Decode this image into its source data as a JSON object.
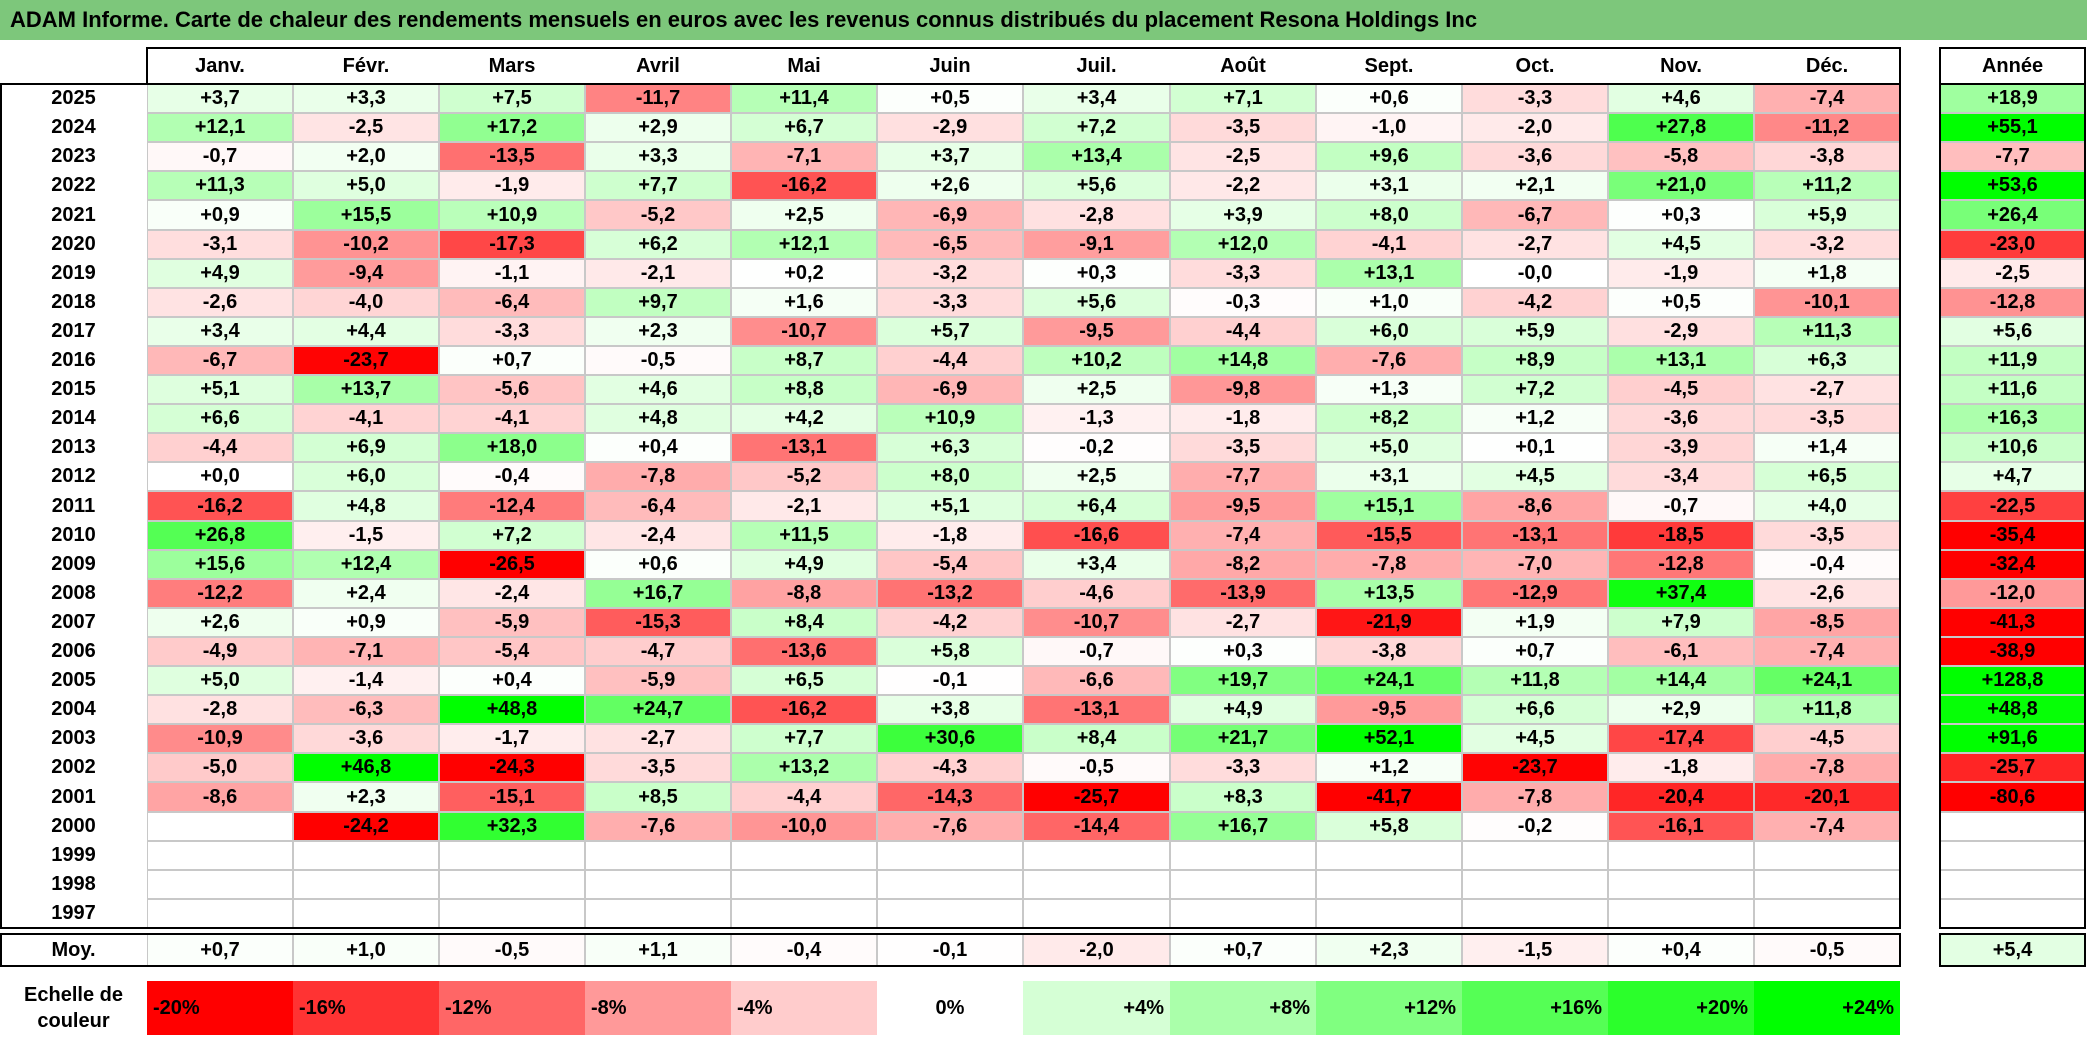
{
  "title": "ADAM Informe. Carte de chaleur des rendements mensuels en euros avec les revenus connus distribués du placement Resona Holdings Inc",
  "chart_data": {
    "type": "heatmap",
    "months": [
      "Janv.",
      "Févr.",
      "Mars",
      "Avril",
      "Mai",
      "Juin",
      "Juil.",
      "Août",
      "Sept.",
      "Oct.",
      "Nov.",
      "Déc."
    ],
    "year_column_label": "Année",
    "rows": [
      {
        "year": "2025",
        "values": [
          "+3,7",
          "+3,3",
          "+7,5",
          "-11,7",
          "+11,4",
          "+0,5",
          "+3,4",
          "+7,1",
          "+0,6",
          "-3,3",
          "+4,6",
          "-7,4"
        ],
        "annual": "+18,9"
      },
      {
        "year": "2024",
        "values": [
          "+12,1",
          "-2,5",
          "+17,2",
          "+2,9",
          "+6,7",
          "-2,9",
          "+7,2",
          "-3,5",
          "-1,0",
          "-2,0",
          "+27,8",
          "-11,2"
        ],
        "annual": "+55,1"
      },
      {
        "year": "2023",
        "values": [
          "-0,7",
          "+2,0",
          "-13,5",
          "+3,3",
          "-7,1",
          "+3,7",
          "+13,4",
          "-2,5",
          "+9,6",
          "-3,6",
          "-5,8",
          "-3,8"
        ],
        "annual": "-7,7"
      },
      {
        "year": "2022",
        "values": [
          "+11,3",
          "+5,0",
          "-1,9",
          "+7,7",
          "-16,2",
          "+2,6",
          "+5,6",
          "-2,2",
          "+3,1",
          "+2,1",
          "+21,0",
          "+11,2"
        ],
        "annual": "+53,6"
      },
      {
        "year": "2021",
        "values": [
          "+0,9",
          "+15,5",
          "+10,9",
          "-5,2",
          "+2,5",
          "-6,9",
          "-2,8",
          "+3,9",
          "+8,0",
          "-6,7",
          "+0,3",
          "+5,9"
        ],
        "annual": "+26,4"
      },
      {
        "year": "2020",
        "values": [
          "-3,1",
          "-10,2",
          "-17,3",
          "+6,2",
          "+12,1",
          "-6,5",
          "-9,1",
          "+12,0",
          "-4,1",
          "-2,7",
          "+4,5",
          "-3,2"
        ],
        "annual": "-23,0"
      },
      {
        "year": "2019",
        "values": [
          "+4,9",
          "-9,4",
          "-1,1",
          "-2,1",
          "+0,2",
          "-3,2",
          "+0,3",
          "-3,3",
          "+13,1",
          "-0,0",
          "-1,9",
          "+1,8"
        ],
        "annual": "-2,5"
      },
      {
        "year": "2018",
        "values": [
          "-2,6",
          "-4,0",
          "-6,4",
          "+9,7",
          "+1,6",
          "-3,3",
          "+5,6",
          "-0,3",
          "+1,0",
          "-4,2",
          "+0,5",
          "-10,1"
        ],
        "annual": "-12,8"
      },
      {
        "year": "2017",
        "values": [
          "+3,4",
          "+4,4",
          "-3,3",
          "+2,3",
          "-10,7",
          "+5,7",
          "-9,5",
          "-4,4",
          "+6,0",
          "+5,9",
          "-2,9",
          "+11,3"
        ],
        "annual": "+5,6"
      },
      {
        "year": "2016",
        "values": [
          "-6,7",
          "-23,7",
          "+0,7",
          "-0,5",
          "+8,7",
          "-4,4",
          "+10,2",
          "+14,8",
          "-7,6",
          "+8,9",
          "+13,1",
          "+6,3"
        ],
        "annual": "+11,9"
      },
      {
        "year": "2015",
        "values": [
          "+5,1",
          "+13,7",
          "-5,6",
          "+4,6",
          "+8,8",
          "-6,9",
          "+2,5",
          "-9,8",
          "+1,3",
          "+7,2",
          "-4,5",
          "-2,7"
        ],
        "annual": "+11,6"
      },
      {
        "year": "2014",
        "values": [
          "+6,6",
          "-4,1",
          "-4,1",
          "+4,8",
          "+4,2",
          "+10,9",
          "-1,3",
          "-1,8",
          "+8,2",
          "+1,2",
          "-3,6",
          "-3,5"
        ],
        "annual": "+16,3"
      },
      {
        "year": "2013",
        "values": [
          "-4,4",
          "+6,9",
          "+18,0",
          "+0,4",
          "-13,1",
          "+6,3",
          "-0,2",
          "-3,5",
          "+5,0",
          "+0,1",
          "-3,9",
          "+1,4"
        ],
        "annual": "+10,6"
      },
      {
        "year": "2012",
        "values": [
          "+0,0",
          "+6,0",
          "-0,4",
          "-7,8",
          "-5,2",
          "+8,0",
          "+2,5",
          "-7,7",
          "+3,1",
          "+4,5",
          "-3,4",
          "+6,5"
        ],
        "annual": "+4,7"
      },
      {
        "year": "2011",
        "values": [
          "-16,2",
          "+4,8",
          "-12,4",
          "-6,4",
          "-2,1",
          "+5,1",
          "+6,4",
          "-9,5",
          "+15,1",
          "-8,6",
          "-0,7",
          "+4,0"
        ],
        "annual": "-22,5"
      },
      {
        "year": "2010",
        "values": [
          "+26,8",
          "-1,5",
          "+7,2",
          "-2,4",
          "+11,5",
          "-1,8",
          "-16,6",
          "-7,4",
          "-15,5",
          "-13,1",
          "-18,5",
          "-3,5"
        ],
        "annual": "-35,4"
      },
      {
        "year": "2009",
        "values": [
          "+15,6",
          "+12,4",
          "-26,5",
          "+0,6",
          "+4,9",
          "-5,4",
          "+3,4",
          "-8,2",
          "-7,8",
          "-7,0",
          "-12,8",
          "-0,4"
        ],
        "annual": "-32,4"
      },
      {
        "year": "2008",
        "values": [
          "-12,2",
          "+2,4",
          "-2,4",
          "+16,7",
          "-8,8",
          "-13,2",
          "-4,6",
          "-13,9",
          "+13,5",
          "-12,9",
          "+37,4",
          "-2,6"
        ],
        "annual": "-12,0"
      },
      {
        "year": "2007",
        "values": [
          "+2,6",
          "+0,9",
          "-5,9",
          "-15,3",
          "+8,4",
          "-4,2",
          "-10,7",
          "-2,7",
          "-21,9",
          "+1,9",
          "+7,9",
          "-8,5"
        ],
        "annual": "-41,3"
      },
      {
        "year": "2006",
        "values": [
          "-4,9",
          "-7,1",
          "-5,4",
          "-4,7",
          "-13,6",
          "+5,8",
          "-0,7",
          "+0,3",
          "-3,8",
          "+0,7",
          "-6,1",
          "-7,4"
        ],
        "annual": "-38,9"
      },
      {
        "year": "2005",
        "values": [
          "+5,0",
          "-1,4",
          "+0,4",
          "-5,9",
          "+6,5",
          "-0,1",
          "-6,6",
          "+19,7",
          "+24,1",
          "+11,8",
          "+14,4",
          "+24,1"
        ],
        "annual": "+128,8"
      },
      {
        "year": "2004",
        "values": [
          "-2,8",
          "-6,3",
          "+48,8",
          "+24,7",
          "-16,2",
          "+3,8",
          "-13,1",
          "+4,9",
          "-9,5",
          "+6,6",
          "+2,9",
          "+11,8"
        ],
        "annual": "+48,8"
      },
      {
        "year": "2003",
        "values": [
          "-10,9",
          "-3,6",
          "-1,7",
          "-2,7",
          "+7,7",
          "+30,6",
          "+8,4",
          "+21,7",
          "+52,1",
          "+4,5",
          "-17,4",
          "-4,5"
        ],
        "annual": "+91,6"
      },
      {
        "year": "2002",
        "values": [
          "-5,0",
          "+46,8",
          "-24,3",
          "-3,5",
          "+13,2",
          "-4,3",
          "-0,5",
          "-3,3",
          "+1,2",
          "-23,7",
          "-1,8",
          "-7,8"
        ],
        "annual": "-25,7"
      },
      {
        "year": "2001",
        "values": [
          "-8,6",
          "+2,3",
          "-15,1",
          "+8,5",
          "-4,4",
          "-14,3",
          "-25,7",
          "+8,3",
          "-41,7",
          "-7,8",
          "-20,4",
          "-20,1"
        ],
        "annual": "-80,6"
      },
      {
        "year": "2000",
        "values": [
          "",
          "-24,2",
          "+32,3",
          "-7,6",
          "-10,0",
          "-7,6",
          "-14,4",
          "+16,7",
          "+5,8",
          "-0,2",
          "-16,1",
          "-7,4"
        ],
        "annual": ""
      },
      {
        "year": "1999",
        "values": [
          "",
          "",
          "",
          "",
          "",
          "",
          "",
          "",
          "",
          "",
          "",
          ""
        ],
        "annual": ""
      },
      {
        "year": "1998",
        "values": [
          "",
          "",
          "",
          "",
          "",
          "",
          "",
          "",
          "",
          "",
          "",
          ""
        ],
        "annual": ""
      },
      {
        "year": "1997",
        "values": [
          "",
          "",
          "",
          "",
          "",
          "",
          "",
          "",
          "",
          "",
          "",
          ""
        ],
        "annual": ""
      }
    ],
    "average": {
      "label": "Moy.",
      "values": [
        "+0,7",
        "+1,0",
        "-0,5",
        "+1,1",
        "-0,4",
        "-0,1",
        "-2,0",
        "+0,7",
        "+2,3",
        "-1,5",
        "+0,4",
        "-0,5"
      ],
      "annual": "+5,4"
    },
    "color_scale": {
      "label": "Echelle de couleur",
      "stops": [
        "-20%",
        "-16%",
        "-12%",
        "-8%",
        "-4%",
        "0%",
        "+4%",
        "+8%",
        "+12%",
        "+16%",
        "+20%",
        "+24%"
      ],
      "negative_color": "#ff0000",
      "neutral_color": "#ffffff",
      "positive_color": "#00ff00"
    }
  }
}
